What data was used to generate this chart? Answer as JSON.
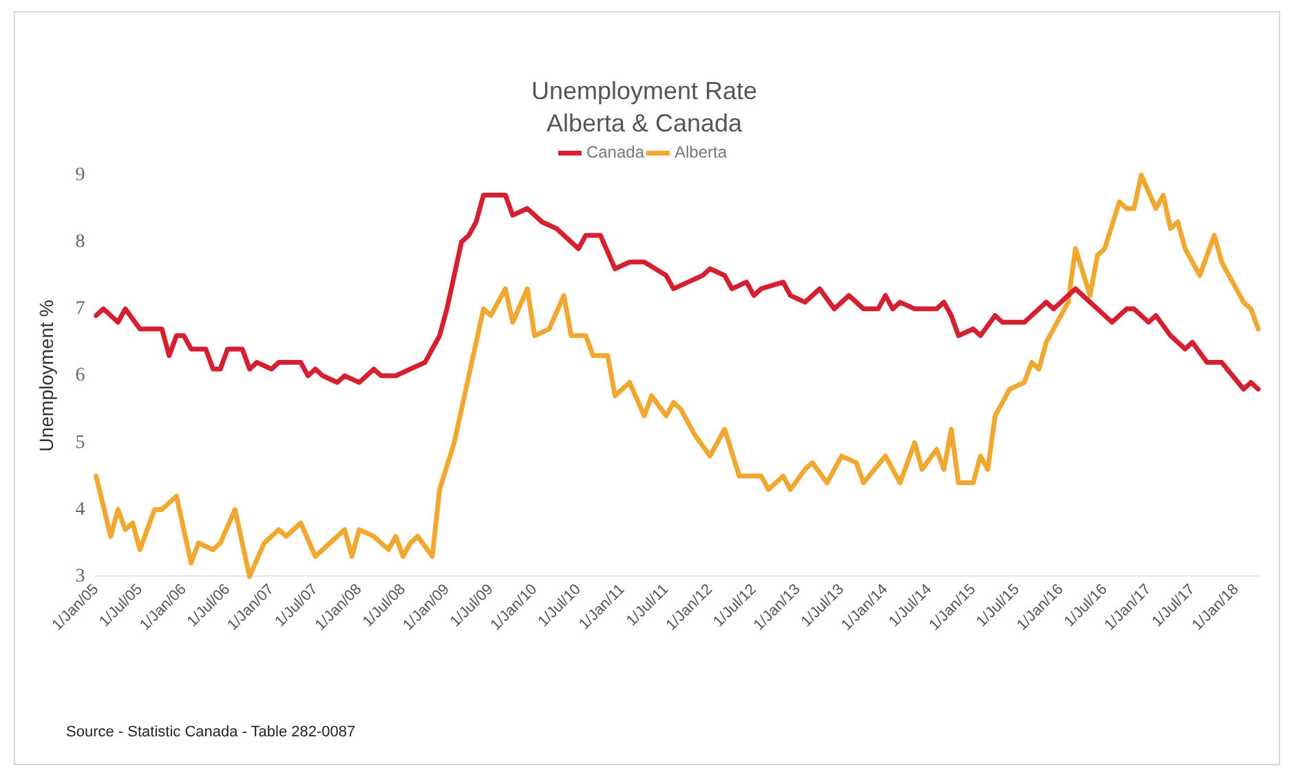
{
  "chart_data": {
    "type": "line",
    "title": "Unemployment Rate",
    "subtitle": "Alberta & Canada",
    "ylabel": "Unemployment %",
    "legend": "top",
    "line_style": "solid",
    "xlim": [
      "2005-01",
      "2018-04"
    ],
    "xticks": [
      {
        "value": "2005-01",
        "label": "1/Jan/05"
      },
      {
        "value": "2005-07",
        "label": "1/Jul/05"
      },
      {
        "value": "2006-01",
        "label": "1/Jan/06"
      },
      {
        "value": "2006-07",
        "label": "1/Jul/06"
      },
      {
        "value": "2007-01",
        "label": "1/Jan/07"
      },
      {
        "value": "2007-07",
        "label": "1/Jul/07"
      },
      {
        "value": "2008-01",
        "label": "1/Jan/08"
      },
      {
        "value": "2008-07",
        "label": "1/Jul/08"
      },
      {
        "value": "2009-01",
        "label": "1/Jan/09"
      },
      {
        "value": "2009-07",
        "label": "1/Jul/09"
      },
      {
        "value": "2010-01",
        "label": "1/Jan/10"
      },
      {
        "value": "2010-07",
        "label": "1/Jul/10"
      },
      {
        "value": "2011-01",
        "label": "1/Jan/11"
      },
      {
        "value": "2011-07",
        "label": "1/Jul/11"
      },
      {
        "value": "2012-01",
        "label": "1/Jan/12"
      },
      {
        "value": "2012-07",
        "label": "1/Jul/12"
      },
      {
        "value": "2013-01",
        "label": "1/Jan/13"
      },
      {
        "value": "2013-07",
        "label": "1/Jul/13"
      },
      {
        "value": "2014-01",
        "label": "1/Jan/14"
      },
      {
        "value": "2014-07",
        "label": "1/Jul/14"
      },
      {
        "value": "2015-01",
        "label": "1/Jan/15"
      },
      {
        "value": "2015-07",
        "label": "1/Jul/15"
      },
      {
        "value": "2016-01",
        "label": "1/Jan/16"
      },
      {
        "value": "2016-07",
        "label": "1/Jul/16"
      },
      {
        "value": "2017-01",
        "label": "1/Jan/17"
      },
      {
        "value": "2017-07",
        "label": "1/Jul/17"
      },
      {
        "value": "2018-01",
        "label": "1/Jan/18"
      }
    ],
    "ylim": [
      3,
      9
    ],
    "yticks": [
      3,
      4,
      5,
      6,
      7,
      8,
      9
    ],
    "annotations": [
      "Source - Statistic Canada - Table 282-0087"
    ],
    "series": [
      {
        "name": "Canada",
        "color": "#d42030",
        "x": [
          "2005-01",
          "2005-02",
          "2005-04",
          "2005-05",
          "2005-07",
          "2005-10",
          "2005-11",
          "2005-12",
          "2006-01",
          "2006-02",
          "2006-04",
          "2006-05",
          "2006-06",
          "2006-07",
          "2006-09",
          "2006-10",
          "2006-11",
          "2007-01",
          "2007-02",
          "2007-04",
          "2007-05",
          "2007-06",
          "2007-07",
          "2007-08",
          "2007-10",
          "2007-11",
          "2008-01",
          "2008-03",
          "2008-04",
          "2008-06",
          "2008-08",
          "2008-10",
          "2008-12",
          "2009-01",
          "2009-03",
          "2009-04",
          "2009-05",
          "2009-06",
          "2009-09",
          "2009-10",
          "2009-12",
          "2010-02",
          "2010-04",
          "2010-07",
          "2010-08",
          "2010-10",
          "2010-12",
          "2011-02",
          "2011-04",
          "2011-07",
          "2011-08",
          "2011-10",
          "2011-12",
          "2012-01",
          "2012-03",
          "2012-04",
          "2012-06",
          "2012-07",
          "2012-08",
          "2012-11",
          "2012-12",
          "2013-02",
          "2013-04",
          "2013-06",
          "2013-08",
          "2013-10",
          "2013-12",
          "2014-01",
          "2014-02",
          "2014-03",
          "2014-05",
          "2014-08",
          "2014-09",
          "2014-10",
          "2014-11",
          "2015-01",
          "2015-02",
          "2015-04",
          "2015-05",
          "2015-08",
          "2015-11",
          "2015-12",
          "2016-01",
          "2016-03",
          "2016-05",
          "2016-08",
          "2016-10",
          "2016-11",
          "2017-01",
          "2017-02",
          "2017-04",
          "2017-06",
          "2017-07",
          "2017-09",
          "2017-11",
          "2018-02",
          "2018-03",
          "2018-04"
        ],
        "values": [
          6.9,
          7.0,
          6.8,
          7.0,
          6.7,
          6.7,
          6.3,
          6.6,
          6.6,
          6.4,
          6.4,
          6.1,
          6.1,
          6.4,
          6.4,
          6.1,
          6.2,
          6.1,
          6.2,
          6.2,
          6.2,
          6.0,
          6.1,
          6.0,
          5.9,
          6.0,
          5.9,
          6.1,
          6.0,
          6.0,
          6.1,
          6.2,
          6.6,
          7.0,
          8.0,
          8.1,
          8.3,
          8.7,
          8.7,
          8.4,
          8.5,
          8.3,
          8.2,
          7.9,
          8.1,
          8.1,
          7.6,
          7.7,
          7.7,
          7.5,
          7.3,
          7.4,
          7.5,
          7.6,
          7.5,
          7.3,
          7.4,
          7.2,
          7.3,
          7.4,
          7.2,
          7.1,
          7.3,
          7.0,
          7.2,
          7.0,
          7.0,
          7.2,
          7.0,
          7.1,
          7.0,
          7.0,
          7.1,
          6.9,
          6.6,
          6.7,
          6.6,
          6.9,
          6.8,
          6.8,
          7.1,
          7.0,
          7.1,
          7.3,
          7.1,
          6.8,
          7.0,
          7.0,
          6.8,
          6.9,
          6.6,
          6.4,
          6.5,
          6.2,
          6.2,
          5.8,
          5.9,
          5.8
        ]
      },
      {
        "name": "Alberta",
        "color": "#f0a830",
        "x": [
          "2005-01",
          "2005-03",
          "2005-04",
          "2005-05",
          "2005-06",
          "2005-07",
          "2005-09",
          "2005-10",
          "2005-12",
          "2006-02",
          "2006-03",
          "2006-05",
          "2006-06",
          "2006-08",
          "2006-10",
          "2006-12",
          "2007-02",
          "2007-03",
          "2007-05",
          "2007-07",
          "2007-09",
          "2007-11",
          "2007-12",
          "2008-01",
          "2008-03",
          "2008-05",
          "2008-06",
          "2008-07",
          "2008-08",
          "2008-09",
          "2008-11",
          "2008-12",
          "2009-02",
          "2009-04",
          "2009-06",
          "2009-07",
          "2009-09",
          "2009-10",
          "2009-12",
          "2010-01",
          "2010-03",
          "2010-05",
          "2010-06",
          "2010-08",
          "2010-09",
          "2010-11",
          "2010-12",
          "2011-02",
          "2011-04",
          "2011-05",
          "2011-07",
          "2011-08",
          "2011-09",
          "2011-11",
          "2012-01",
          "2012-03",
          "2012-05",
          "2012-08",
          "2012-09",
          "2012-11",
          "2012-12",
          "2013-02",
          "2013-03",
          "2013-05",
          "2013-07",
          "2013-09",
          "2013-10",
          "2014-01",
          "2014-03",
          "2014-05",
          "2014-06",
          "2014-08",
          "2014-09",
          "2014-10",
          "2014-11",
          "2015-01",
          "2015-02",
          "2015-03",
          "2015-04",
          "2015-05",
          "2015-06",
          "2015-08",
          "2015-09",
          "2015-10",
          "2015-11",
          "2015-12",
          "2016-02",
          "2016-03",
          "2016-05",
          "2016-06",
          "2016-07",
          "2016-09",
          "2016-10",
          "2016-11",
          "2016-12",
          "2017-02",
          "2017-03",
          "2017-04",
          "2017-05",
          "2017-06",
          "2017-08",
          "2017-10",
          "2017-11",
          "2018-02",
          "2018-03",
          "2018-04"
        ],
        "values": [
          4.5,
          3.6,
          4.0,
          3.7,
          3.8,
          3.4,
          4.0,
          4.0,
          4.2,
          3.2,
          3.5,
          3.4,
          3.5,
          4.0,
          3.0,
          3.5,
          3.7,
          3.6,
          3.8,
          3.3,
          3.5,
          3.7,
          3.3,
          3.7,
          3.6,
          3.4,
          3.6,
          3.3,
          3.5,
          3.6,
          3.3,
          4.3,
          5.0,
          6.0,
          7.0,
          6.9,
          7.3,
          6.8,
          7.3,
          6.6,
          6.7,
          7.2,
          6.6,
          6.6,
          6.3,
          6.3,
          5.7,
          5.9,
          5.4,
          5.7,
          5.4,
          5.6,
          5.5,
          5.1,
          4.8,
          5.2,
          4.5,
          4.5,
          4.3,
          4.5,
          4.3,
          4.6,
          4.7,
          4.4,
          4.8,
          4.7,
          4.4,
          4.8,
          4.4,
          5.0,
          4.6,
          4.9,
          4.6,
          5.2,
          4.4,
          4.4,
          4.8,
          4.6,
          5.4,
          5.6,
          5.8,
          5.9,
          6.2,
          6.1,
          6.5,
          6.7,
          7.1,
          7.9,
          7.2,
          7.8,
          7.9,
          8.6,
          8.5,
          8.5,
          9.0,
          8.5,
          8.7,
          8.2,
          8.3,
          7.9,
          7.5,
          8.1,
          7.7,
          7.1,
          7.0,
          6.7
        ]
      }
    ]
  }
}
